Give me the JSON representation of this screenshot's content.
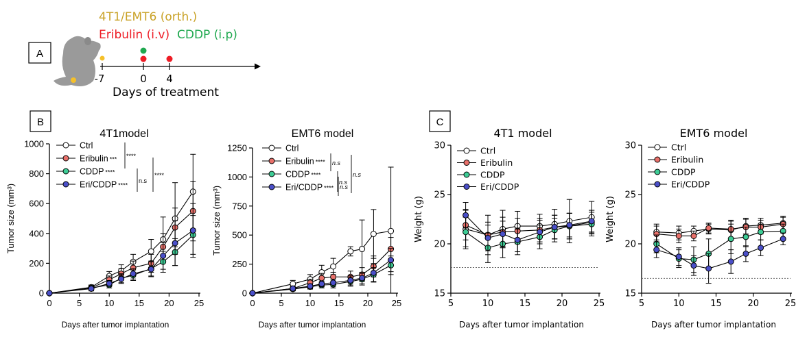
{
  "panel_labels": {
    "a": "A",
    "b": "B",
    "c": "C"
  },
  "schedule": {
    "line1": "4T1/EMT6 (orth.)",
    "line2_drug1": "Eribulin (i.v)",
    "line2_drug2": "CDDP (i.p)",
    "ticks": [
      "-7",
      "0",
      "4"
    ],
    "axis_label": "Days of treatment",
    "colors": {
      "tumor": "#f5c02a",
      "eribulin": "#ee1c25",
      "cddp": "#1fa84f",
      "title_gold": "#c9a227"
    }
  },
  "series_colors": {
    "Ctrl": "#ffffff",
    "Eribulin": "#e8706a",
    "CDDP": "#3dcc95",
    "Eri/CDDP": "#4a4fc8"
  },
  "chart_data": [
    {
      "type": "line",
      "title": "4T1model",
      "xlabel": "Days after tumor implantation",
      "ylabel": "Tumor size (mm³)",
      "xlim": [
        0,
        25
      ],
      "ylim": [
        0,
        1000
      ],
      "xticks": [
        0,
        5,
        10,
        15,
        20,
        25
      ],
      "yticks": [
        0,
        200,
        400,
        600,
        800,
        1000
      ],
      "x": [
        0,
        7,
        10,
        12,
        14,
        17,
        19,
        21,
        24
      ],
      "series": [
        {
          "name": "Ctrl",
          "legend": "Ctrl",
          "sig": "",
          "y": [
            0,
            40,
            115,
            150,
            210,
            280,
            360,
            500,
            680
          ],
          "err": [
            0,
            15,
            30,
            40,
            50,
            80,
            150,
            240,
            250
          ]
        },
        {
          "name": "Eribulin",
          "legend": "Eribulin",
          "sig": "***",
          "y": [
            0,
            35,
            90,
            130,
            170,
            200,
            310,
            440,
            550
          ],
          "err": [
            0,
            15,
            25,
            35,
            45,
            60,
            90,
            130,
            200
          ]
        },
        {
          "name": "CDDP",
          "legend": "CDDP",
          "sig": "****",
          "y": [
            0,
            35,
            55,
            100,
            120,
            165,
            210,
            275,
            390
          ],
          "err": [
            0,
            15,
            20,
            30,
            35,
            50,
            70,
            90,
            130
          ]
        },
        {
          "name": "Eri/CDDP",
          "legend": "Eri/CDDP",
          "sig": "****",
          "y": [
            0,
            30,
            65,
            95,
            130,
            160,
            250,
            335,
            420
          ],
          "err": [
            0,
            15,
            20,
            30,
            35,
            50,
            90,
            150,
            180
          ]
        }
      ],
      "brackets": [
        "****",
        "n.s",
        "****"
      ]
    },
    {
      "type": "line",
      "title": "EMT6 model",
      "xlabel": "Days after tumor implantation",
      "ylabel": "Tumor size (mm³)",
      "xlim": [
        0,
        25
      ],
      "ylim": [
        0,
        1250
      ],
      "xticks": [
        0,
        5,
        10,
        15,
        20,
        25
      ],
      "yticks": [
        0,
        250,
        500,
        750,
        1000,
        1250
      ],
      "x": [
        0,
        7,
        10,
        12,
        14,
        17,
        19,
        21,
        24
      ],
      "series": [
        {
          "name": "Ctrl",
          "legend": "Ctrl",
          "sig": "",
          "y": [
            0,
            80,
            120,
            180,
            230,
            360,
            380,
            510,
            535
          ],
          "err": [
            0,
            30,
            40,
            60,
            70,
            40,
            250,
            210,
            550
          ]
        },
        {
          "name": "Eribulin",
          "legend": "Eribulin",
          "sig": "****",
          "y": [
            0,
            40,
            90,
            130,
            140,
            140,
            160,
            230,
            380
          ],
          "err": [
            0,
            20,
            30,
            40,
            40,
            50,
            60,
            90,
            100
          ]
        },
        {
          "name": "CDDP",
          "legend": "CDDP",
          "sig": "****",
          "y": [
            0,
            35,
            55,
            70,
            75,
            100,
            120,
            160,
            240
          ],
          "err": [
            0,
            15,
            20,
            25,
            30,
            40,
            50,
            60,
            80
          ]
        },
        {
          "name": "Eri/CDDP",
          "legend": "Eri/CDDP",
          "sig": "****",
          "y": [
            0,
            40,
            60,
            80,
            90,
            110,
            130,
            175,
            285
          ],
          "err": [
            0,
            15,
            20,
            25,
            30,
            40,
            50,
            80,
            100
          ]
        }
      ],
      "brackets": [
        "n.s",
        "n.s",
        "n.s",
        "n.s"
      ]
    },
    {
      "type": "line",
      "title": "4T1 model",
      "xlabel": "Days after tumor implantation",
      "ylabel": "Weight (g)",
      "xlim": [
        5,
        25
      ],
      "ylim": [
        15,
        30
      ],
      "xticks": [
        5,
        10,
        15,
        20,
        25
      ],
      "yticks": [
        15,
        20,
        25,
        30
      ],
      "reference_line": 17.6,
      "x": [
        7,
        10,
        12,
        14,
        17,
        19,
        21,
        24
      ],
      "series": [
        {
          "name": "Ctrl",
          "legend": "Ctrl",
          "y": [
            21.5,
            20.9,
            21.5,
            21.8,
            21.8,
            22.0,
            22.3,
            22.7
          ],
          "err": [
            2.0,
            2.0,
            1.9,
            1.5,
            1.2,
            1.5,
            2.2,
            1.6
          ]
        },
        {
          "name": "Eribulin",
          "legend": "Eribulin",
          "y": [
            21.9,
            20.9,
            21.2,
            21.3,
            21.4,
            21.7,
            21.8,
            22.2
          ],
          "err": [
            1.5,
            1.3,
            1.5,
            1.3,
            1.2,
            1.2,
            1.3,
            1.2
          ]
        },
        {
          "name": "CDDP",
          "legend": "CDDP",
          "y": [
            21.2,
            19.6,
            20.0,
            20.2,
            20.7,
            21.4,
            21.8,
            22.0
          ],
          "err": [
            1.5,
            1.5,
            1.4,
            1.3,
            1.2,
            1.2,
            1.3,
            1.2
          ]
        },
        {
          "name": "Eri/CDDP",
          "legend": "Eri/CDDP",
          "y": [
            22.9,
            20.6,
            21.0,
            20.4,
            21.2,
            21.7,
            21.9,
            22.3
          ],
          "err": [
            1.3,
            1.3,
            1.3,
            1.2,
            1.2,
            1.2,
            1.2,
            1.1
          ]
        }
      ]
    },
    {
      "type": "line",
      "title": "EMT6 model",
      "xlabel": "Days after tumor implantation",
      "ylabel": "Weight (g)",
      "xlim": [
        5,
        25
      ],
      "ylim": [
        15,
        30
      ],
      "xticks": [
        5,
        10,
        15,
        20,
        25
      ],
      "yticks": [
        15,
        20,
        25,
        30
      ],
      "reference_line": 16.5,
      "x": [
        7,
        10,
        12,
        14,
        17,
        19,
        21,
        24
      ],
      "series": [
        {
          "name": "Ctrl",
          "legend": "Ctrl",
          "y": [
            21.2,
            21.1,
            21.3,
            21.5,
            21.4,
            21.8,
            21.9,
            22.1
          ],
          "err": [
            0.8,
            0.7,
            0.5,
            0.5,
            0.9,
            0.8,
            0.7,
            0.7
          ]
        },
        {
          "name": "Eribulin",
          "legend": "Eribulin",
          "y": [
            21.0,
            20.8,
            20.8,
            21.6,
            21.5,
            21.7,
            21.7,
            22.0
          ],
          "err": [
            0.8,
            0.7,
            0.5,
            0.5,
            0.9,
            0.8,
            0.7,
            0.7
          ]
        },
        {
          "name": "CDDP",
          "legend": "CDDP",
          "y": [
            20.0,
            18.5,
            18.4,
            19.0,
            20.5,
            20.7,
            21.2,
            21.3
          ],
          "err": [
            0.9,
            0.9,
            1.3,
            1.5,
            1.5,
            1.0,
            0.8,
            0.7
          ]
        },
        {
          "name": "Eri/CDDP",
          "legend": "Eri/CDDP",
          "y": [
            19.4,
            18.7,
            17.8,
            17.5,
            18.2,
            19.0,
            19.6,
            20.5
          ],
          "err": [
            0.8,
            0.9,
            1.0,
            1.5,
            1.2,
            0.8,
            0.8,
            0.6
          ]
        }
      ]
    }
  ]
}
